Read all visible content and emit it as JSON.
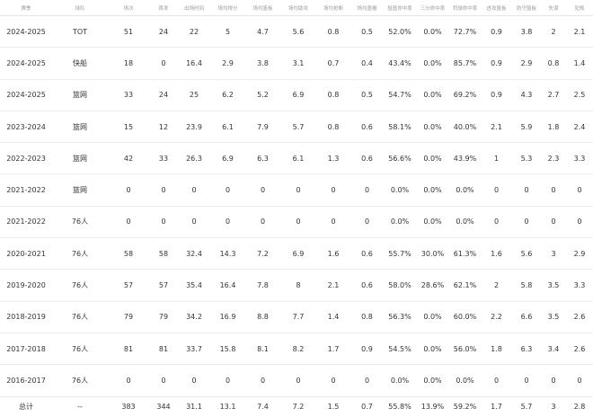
{
  "table": {
    "header": [
      "赛季",
      "球队",
      "场次",
      "首发",
      "出场时间",
      "场均得分",
      "场均篮板",
      "场均助攻",
      "场均抢断",
      "场均盖帽",
      "投篮命中率",
      "三分命中率",
      "罚球命中率",
      "进攻篮板",
      "防守篮板",
      "失误",
      "犯规"
    ],
    "rows": [
      [
        "2024-2025",
        "TOT",
        "51",
        "24",
        "22",
        "5",
        "4.7",
        "5.6",
        "0.8",
        "0.5",
        "52.0%",
        "0.0%",
        "72.7%",
        "0.9",
        "3.8",
        "2",
        "2.1"
      ],
      [
        "2024-2025",
        "快船",
        "18",
        "0",
        "16.4",
        "2.9",
        "3.8",
        "3.1",
        "0.7",
        "0.4",
        "43.4%",
        "0.0%",
        "85.7%",
        "0.9",
        "2.9",
        "0.8",
        "1.4"
      ],
      [
        "2024-2025",
        "篮网",
        "33",
        "24",
        "25",
        "6.2",
        "5.2",
        "6.9",
        "0.8",
        "0.5",
        "54.7%",
        "0.0%",
        "69.2%",
        "0.9",
        "4.3",
        "2.7",
        "2.5"
      ],
      [
        "2023-2024",
        "篮网",
        "15",
        "12",
        "23.9",
        "6.1",
        "7.9",
        "5.7",
        "0.8",
        "0.6",
        "58.1%",
        "0.0%",
        "40.0%",
        "2.1",
        "5.9",
        "1.8",
        "2.4"
      ],
      [
        "2022-2023",
        "篮网",
        "42",
        "33",
        "26.3",
        "6.9",
        "6.3",
        "6.1",
        "1.3",
        "0.6",
        "56.6%",
        "0.0%",
        "43.9%",
        "1",
        "5.3",
        "2.3",
        "3.3"
      ],
      [
        "2021-2022",
        "篮网",
        "0",
        "0",
        "0",
        "0",
        "0",
        "0",
        "0",
        "0",
        "0.0%",
        "0.0%",
        "0.0%",
        "0",
        "0",
        "0",
        "0"
      ],
      [
        "2021-2022",
        "76人",
        "0",
        "0",
        "0",
        "0",
        "0",
        "0",
        "0",
        "0",
        "0.0%",
        "0.0%",
        "0.0%",
        "0",
        "0",
        "0",
        "0"
      ],
      [
        "2020-2021",
        "76人",
        "58",
        "58",
        "32.4",
        "14.3",
        "7.2",
        "6.9",
        "1.6",
        "0.6",
        "55.7%",
        "30.0%",
        "61.3%",
        "1.6",
        "5.6",
        "3",
        "2.9"
      ],
      [
        "2019-2020",
        "76人",
        "57",
        "57",
        "35.4",
        "16.4",
        "7.8",
        "8",
        "2.1",
        "0.6",
        "58.0%",
        "28.6%",
        "62.1%",
        "2",
        "5.8",
        "3.5",
        "3.3"
      ],
      [
        "2018-2019",
        "76人",
        "79",
        "79",
        "34.2",
        "16.9",
        "8.8",
        "7.7",
        "1.4",
        "0.8",
        "56.3%",
        "0.0%",
        "60.0%",
        "2.2",
        "6.6",
        "3.5",
        "2.6"
      ],
      [
        "2017-2018",
        "76人",
        "81",
        "81",
        "33.7",
        "15.8",
        "8.1",
        "8.2",
        "1.7",
        "0.9",
        "54.5%",
        "0.0%",
        "56.0%",
        "1.8",
        "6.3",
        "3.4",
        "2.6"
      ],
      [
        "2016-2017",
        "76人",
        "0",
        "0",
        "0",
        "0",
        "0",
        "0",
        "0",
        "0",
        "0.0%",
        "0.0%",
        "0.0%",
        "0",
        "0",
        "0",
        "0"
      ]
    ],
    "total": [
      "总计",
      "--",
      "383",
      "344",
      "31.1",
      "13.1",
      "7.4",
      "7.2",
      "1.5",
      "0.7",
      "55.8%",
      "13.9%",
      "59.2%",
      "1.7",
      "5.7",
      "3",
      "2.8"
    ]
  }
}
